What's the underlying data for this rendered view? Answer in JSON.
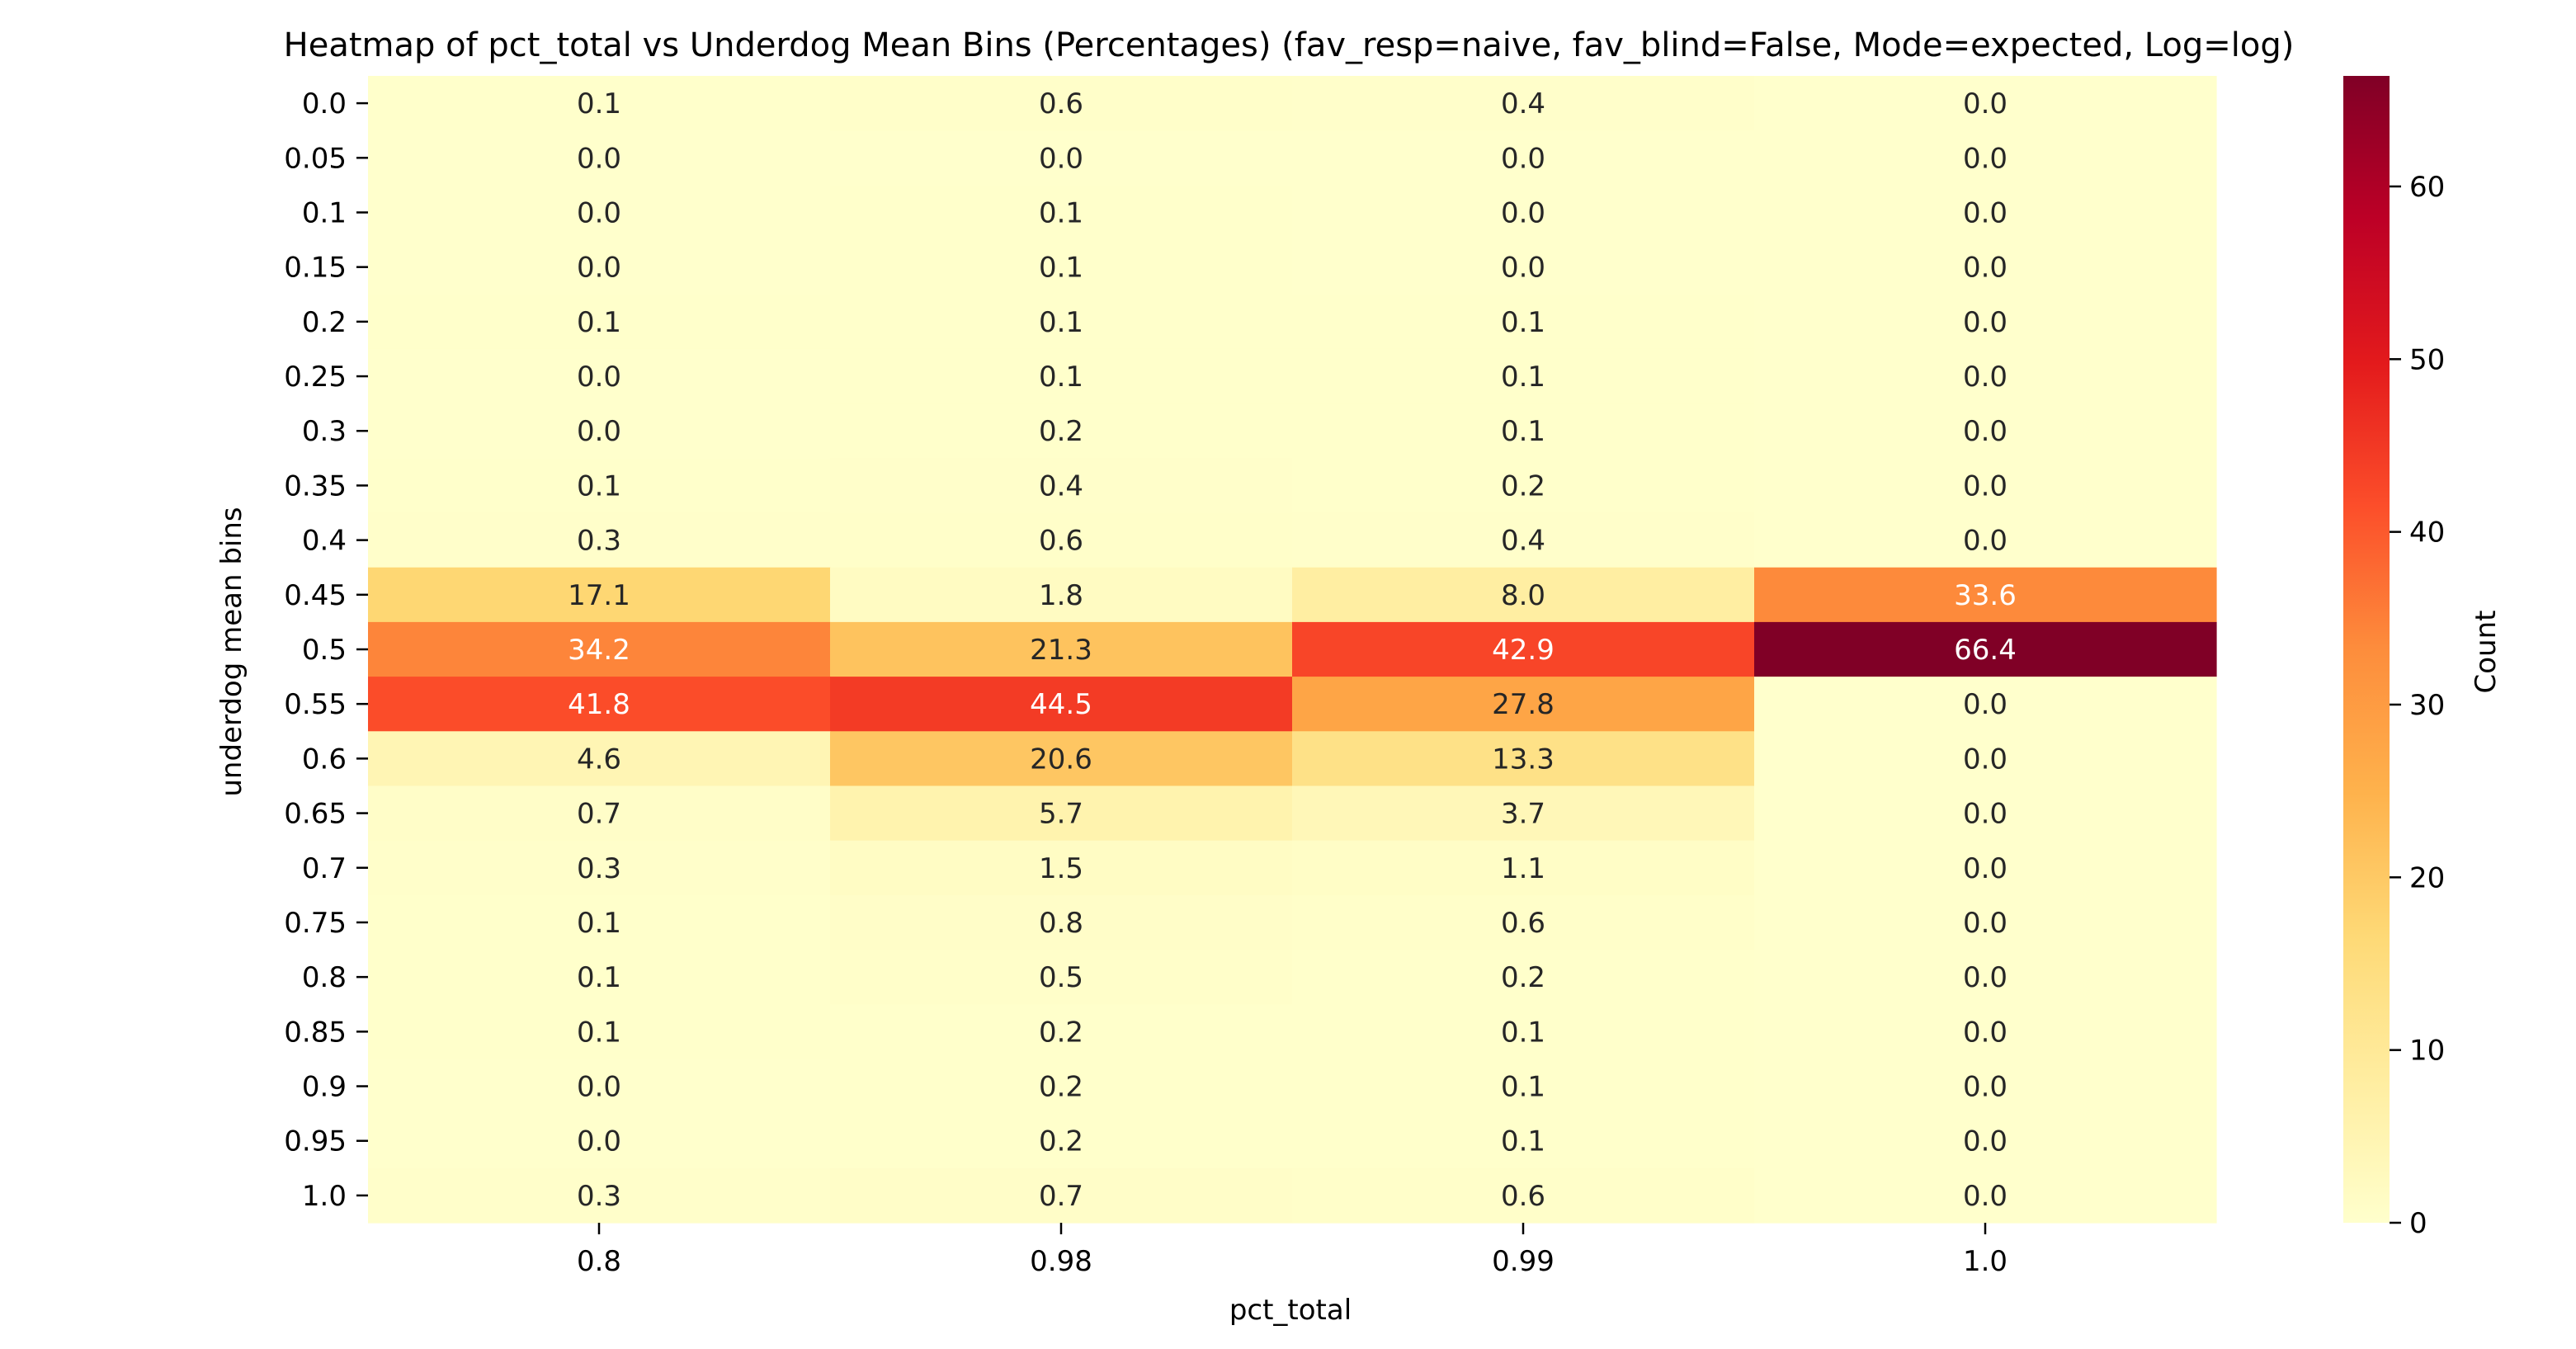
{
  "chart_data": {
    "type": "heatmap",
    "title": "Heatmap of pct_total vs Underdog Mean Bins (Percentages)  (fav_resp=naive, fav_blind=False, Mode=expected, Log=log)",
    "xlabel": "pct_total",
    "ylabel": "underdog mean bins",
    "x_categories": [
      "0.8",
      "0.98",
      "0.99",
      "1.0"
    ],
    "y_categories": [
      "0.0",
      "0.05",
      "0.1",
      "0.15",
      "0.2",
      "0.25",
      "0.3",
      "0.35",
      "0.4",
      "0.45",
      "0.5",
      "0.55",
      "0.6",
      "0.65",
      "0.7",
      "0.75",
      "0.8",
      "0.85",
      "0.9",
      "0.95",
      "1.0"
    ],
    "values": [
      [
        0.1,
        0.6,
        0.4,
        0.0
      ],
      [
        0.0,
        0.0,
        0.0,
        0.0
      ],
      [
        0.0,
        0.1,
        0.0,
        0.0
      ],
      [
        0.0,
        0.1,
        0.0,
        0.0
      ],
      [
        0.1,
        0.1,
        0.1,
        0.0
      ],
      [
        0.0,
        0.1,
        0.1,
        0.0
      ],
      [
        0.0,
        0.2,
        0.1,
        0.0
      ],
      [
        0.1,
        0.4,
        0.2,
        0.0
      ],
      [
        0.3,
        0.6,
        0.4,
        0.0
      ],
      [
        17.1,
        1.8,
        8.0,
        33.6
      ],
      [
        34.2,
        21.3,
        42.9,
        66.4
      ],
      [
        41.8,
        44.5,
        27.8,
        0.0
      ],
      [
        4.6,
        20.6,
        13.3,
        0.0
      ],
      [
        0.7,
        5.7,
        3.7,
        0.0
      ],
      [
        0.3,
        1.5,
        1.1,
        0.0
      ],
      [
        0.1,
        0.8,
        0.6,
        0.0
      ],
      [
        0.1,
        0.5,
        0.2,
        0.0
      ],
      [
        0.1,
        0.2,
        0.1,
        0.0
      ],
      [
        0.0,
        0.2,
        0.1,
        0.0
      ],
      [
        0.0,
        0.2,
        0.1,
        0.0
      ],
      [
        0.3,
        0.7,
        0.6,
        0.0
      ]
    ],
    "colorbar": {
      "label": "Count",
      "range": [
        0,
        66.4
      ],
      "ticks": [
        "0",
        "10",
        "20",
        "30",
        "40",
        "50",
        "60"
      ],
      "colormap": "YlOrRd"
    }
  }
}
